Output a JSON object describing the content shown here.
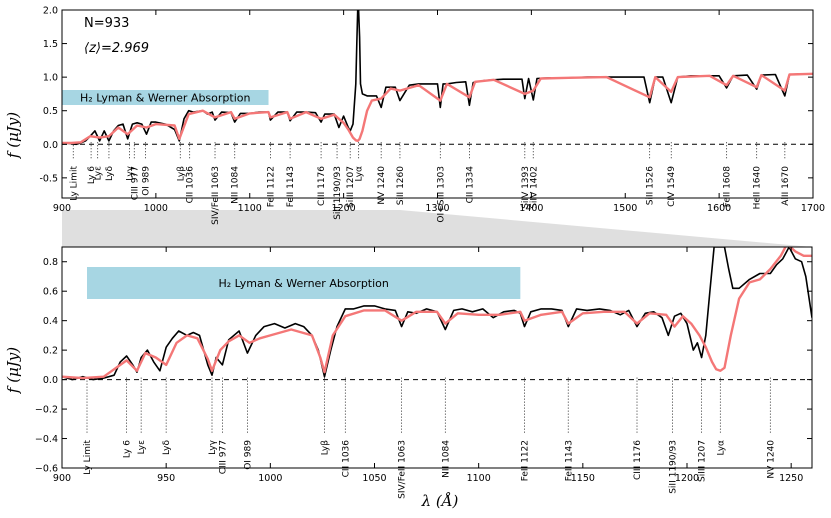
{
  "colors": {
    "observed": "#000000",
    "model": "#f47777",
    "h2_band": "#a7d6e3",
    "zoom_shade": "#d9d9d9"
  },
  "annotations": {
    "n_label": "N=933",
    "z_label": "⟨z⟩=2.969",
    "h2_label_top": "H₂ Lyman & Werner Absorption",
    "h2_label_bottom": "H₂ Lyman & Werner Absorption"
  },
  "chart_data": [
    {
      "type": "line",
      "title": "",
      "xlabel": "λ (Å)",
      "ylabel": "f (μJy)",
      "xlim": [
        900,
        1700
      ],
      "ylim": [
        -0.8,
        2.0
      ],
      "xticks": [
        900,
        1000,
        1100,
        1200,
        1300,
        1400,
        1500,
        1600,
        1700
      ],
      "yticks": [
        "-0.5",
        "0.0",
        "0.5",
        "1.0",
        "1.5",
        "2.0"
      ],
      "h2_band": [
        900,
        1120
      ],
      "series": [
        {
          "key": "observed",
          "x": [
            900,
            910,
            915,
            920,
            925,
            930,
            935,
            940,
            945,
            950,
            955,
            960,
            965,
            970,
            975,
            980,
            985,
            990,
            995,
            1000,
            1010,
            1020,
            1025,
            1030,
            1035,
            1040,
            1050,
            1055,
            1060,
            1063,
            1070,
            1080,
            1084,
            1090,
            1100,
            1110,
            1120,
            1122,
            1130,
            1140,
            1143,
            1150,
            1160,
            1170,
            1176,
            1180,
            1190,
            1195,
            1200,
            1205,
            1207,
            1210,
            1213,
            1214,
            1215,
            1216,
            1217,
            1218,
            1220,
            1225,
            1230,
            1235,
            1240,
            1245,
            1250,
            1255,
            1260,
            1270,
            1280,
            1290,
            1300,
            1303,
            1306,
            1310,
            1320,
            1330,
            1334,
            1338,
            1350,
            1360,
            1370,
            1380,
            1390,
            1393,
            1397,
            1402,
            1406,
            1420,
            1440,
            1460,
            1480,
            1500,
            1520,
            1526,
            1532,
            1540,
            1549,
            1556,
            1570,
            1590,
            1600,
            1608,
            1615,
            1630,
            1640,
            1645,
            1660,
            1670,
            1675,
            1690,
            1700
          ],
          "y": [
            0.02,
            0.01,
            0.0,
            0.02,
            0.05,
            0.12,
            0.2,
            0.05,
            0.2,
            0.05,
            0.2,
            0.28,
            0.3,
            0.08,
            0.3,
            0.32,
            0.3,
            0.15,
            0.33,
            0.33,
            0.3,
            0.22,
            0.05,
            0.38,
            0.5,
            0.48,
            0.5,
            0.45,
            0.48,
            0.36,
            0.48,
            0.47,
            0.33,
            0.46,
            0.46,
            0.48,
            0.48,
            0.36,
            0.48,
            0.48,
            0.35,
            0.48,
            0.48,
            0.47,
            0.33,
            0.45,
            0.45,
            0.25,
            0.42,
            0.25,
            0.2,
            0.3,
            0.9,
            1.5,
            2.0,
            2.0,
            1.6,
            0.9,
            0.75,
            0.72,
            0.72,
            0.72,
            0.55,
            0.85,
            0.85,
            0.85,
            0.65,
            0.88,
            0.9,
            0.9,
            0.9,
            0.55,
            0.9,
            0.9,
            0.92,
            0.93,
            0.58,
            0.92,
            0.95,
            0.96,
            0.97,
            0.97,
            0.97,
            0.68,
            0.98,
            0.66,
            0.98,
            0.99,
            0.99,
            1.0,
            1.0,
            1.0,
            1.0,
            0.62,
            1.0,
            1.0,
            0.62,
            1.0,
            1.02,
            1.02,
            1.02,
            0.84,
            1.02,
            1.03,
            0.82,
            1.03,
            1.04,
            0.72,
            1.04,
            1.05,
            1.05
          ],
          "label": ""
        },
        {
          "key": "model",
          "x": [
            900,
            910,
            920,
            930,
            940,
            950,
            960,
            970,
            980,
            990,
            1000,
            1020,
            1025,
            1035,
            1050,
            1063,
            1080,
            1084,
            1100,
            1120,
            1122,
            1140,
            1143,
            1160,
            1176,
            1190,
            1195,
            1200,
            1205,
            1210,
            1213,
            1215,
            1217,
            1220,
            1225,
            1230,
            1240,
            1250,
            1260,
            1280,
            1303,
            1310,
            1334,
            1340,
            1360,
            1393,
            1402,
            1410,
            1440,
            1480,
            1526,
            1532,
            1549,
            1556,
            1590,
            1608,
            1615,
            1640,
            1645,
            1670,
            1675,
            1700
          ],
          "y": [
            0.02,
            0.02,
            0.03,
            0.12,
            0.1,
            0.12,
            0.25,
            0.15,
            0.28,
            0.25,
            0.3,
            0.28,
            0.08,
            0.45,
            0.5,
            0.4,
            0.48,
            0.38,
            0.46,
            0.48,
            0.4,
            0.48,
            0.38,
            0.48,
            0.38,
            0.44,
            0.38,
            0.32,
            0.22,
            0.1,
            0.06,
            0.05,
            0.08,
            0.2,
            0.5,
            0.65,
            0.68,
            0.83,
            0.8,
            0.88,
            0.65,
            0.9,
            0.7,
            0.93,
            0.96,
            0.75,
            0.8,
            0.98,
            0.99,
            1.0,
            0.7,
            1.0,
            0.78,
            1.0,
            1.02,
            0.88,
            1.02,
            0.85,
            1.03,
            0.8,
            1.04,
            1.05
          ],
          "label": ""
        }
      ],
      "spectral_lines": [
        {
          "x": 912,
          "label": "Ly Limit"
        },
        {
          "x": 931,
          "label": "Ly 6"
        },
        {
          "x": 938,
          "label": "Lyε"
        },
        {
          "x": 950,
          "label": "Lyδ"
        },
        {
          "x": 972,
          "label": "Lyγ"
        },
        {
          "x": 977,
          "label": "CIII 977"
        },
        {
          "x": 989,
          "label": "OI 989"
        },
        {
          "x": 1026,
          "label": "Lyβ"
        },
        {
          "x": 1036,
          "label": "CII 1036"
        },
        {
          "x": 1063,
          "label": "SIV/FeII 1063"
        },
        {
          "x": 1084,
          "label": "NII 1084"
        },
        {
          "x": 1122,
          "label": "FeII 1122"
        },
        {
          "x": 1143,
          "label": "FeII 1143"
        },
        {
          "x": 1176,
          "label": "CIII 1176"
        },
        {
          "x": 1193,
          "label": "SiII 1190/93"
        },
        {
          "x": 1207,
          "label": "SiIII 1207"
        },
        {
          "x": 1216,
          "label": "Lyα"
        },
        {
          "x": 1240,
          "label": "NV 1240"
        },
        {
          "x": 1260,
          "label": "SiII 1260"
        },
        {
          "x": 1303,
          "label": "OI+SiII 1303"
        },
        {
          "x": 1334,
          "label": "CII 1334"
        },
        {
          "x": 1393,
          "label": "SiIV 1393"
        },
        {
          "x": 1402,
          "label": "SiIV 1402"
        },
        {
          "x": 1526,
          "label": "SiII 1526"
        },
        {
          "x": 1549,
          "label": "CIV 1549"
        },
        {
          "x": 1608,
          "label": "FeII 1608"
        },
        {
          "x": 1640,
          "label": "HeII 1640"
        },
        {
          "x": 1670,
          "label": "AlII 1670"
        }
      ]
    },
    {
      "type": "line",
      "title": "",
      "xlabel": "λ (Å)",
      "ylabel": "f (μJy)",
      "xlim": [
        900,
        1260
      ],
      "ylim": [
        -0.6,
        0.9
      ],
      "xticks": [
        900,
        950,
        1000,
        1050,
        1100,
        1150,
        1200,
        1250
      ],
      "yticks": [
        "−0.6",
        "−0.4",
        "−0.2",
        "0.0",
        "0.2",
        "0.4",
        "0.6",
        "0.8"
      ],
      "h2_band": [
        912,
        1120
      ],
      "series": [
        {
          "key": "observed",
          "x": [
            900,
            905,
            910,
            915,
            920,
            925,
            928,
            931,
            934,
            936,
            938,
            941,
            944,
            947,
            950,
            953,
            956,
            960,
            963,
            966,
            970,
            972,
            974,
            977,
            980,
            985,
            989,
            993,
            997,
            1002,
            1007,
            1012,
            1016,
            1020,
            1023,
            1026,
            1029,
            1032,
            1036,
            1040,
            1045,
            1050,
            1055,
            1060,
            1063,
            1066,
            1070,
            1075,
            1080,
            1084,
            1088,
            1092,
            1097,
            1102,
            1107,
            1112,
            1117,
            1120,
            1122,
            1125,
            1130,
            1135,
            1140,
            1143,
            1147,
            1152,
            1158,
            1163,
            1168,
            1172,
            1176,
            1180,
            1184,
            1188,
            1191,
            1194,
            1197,
            1200,
            1203,
            1205,
            1207,
            1209,
            1211,
            1213,
            1214,
            1215,
            1216,
            1217,
            1218,
            1220,
            1222,
            1225,
            1230,
            1235,
            1240,
            1243,
            1246,
            1249,
            1252,
            1255,
            1257,
            1260
          ],
          "y": [
            0.02,
            0.0,
            0.02,
            0.0,
            0.01,
            0.03,
            0.12,
            0.16,
            0.1,
            0.05,
            0.15,
            0.2,
            0.12,
            0.06,
            0.22,
            0.28,
            0.33,
            0.3,
            0.32,
            0.3,
            0.1,
            0.03,
            0.15,
            0.1,
            0.27,
            0.33,
            0.18,
            0.3,
            0.36,
            0.38,
            0.35,
            0.38,
            0.36,
            0.3,
            0.2,
            0.02,
            0.2,
            0.36,
            0.48,
            0.48,
            0.5,
            0.5,
            0.48,
            0.47,
            0.36,
            0.46,
            0.45,
            0.48,
            0.46,
            0.34,
            0.47,
            0.48,
            0.46,
            0.48,
            0.42,
            0.46,
            0.47,
            0.45,
            0.36,
            0.46,
            0.48,
            0.48,
            0.47,
            0.36,
            0.48,
            0.47,
            0.48,
            0.47,
            0.44,
            0.47,
            0.36,
            0.45,
            0.46,
            0.42,
            0.3,
            0.43,
            0.45,
            0.38,
            0.2,
            0.25,
            0.15,
            0.3,
            0.6,
            0.9,
            0.9,
            0.9,
            0.9,
            0.9,
            0.9,
            0.75,
            0.62,
            0.62,
            0.68,
            0.72,
            0.72,
            0.78,
            0.82,
            0.9,
            0.82,
            0.8,
            0.7,
            0.42
          ],
          "label": ""
        },
        {
          "key": "model",
          "x": [
            900,
            910,
            920,
            928,
            931,
            936,
            940,
            945,
            950,
            955,
            960,
            965,
            970,
            972,
            976,
            980,
            985,
            990,
            995,
            1000,
            1010,
            1020,
            1024,
            1026,
            1030,
            1036,
            1045,
            1055,
            1063,
            1070,
            1080,
            1084,
            1090,
            1100,
            1110,
            1120,
            1122,
            1130,
            1140,
            1143,
            1150,
            1160,
            1170,
            1176,
            1182,
            1190,
            1194,
            1198,
            1202,
            1206,
            1209,
            1212,
            1214,
            1216,
            1218,
            1221,
            1225,
            1230,
            1235,
            1240,
            1245,
            1248,
            1252,
            1256,
            1260
          ],
          "y": [
            0.02,
            0.01,
            0.02,
            0.1,
            0.13,
            0.06,
            0.18,
            0.15,
            0.1,
            0.25,
            0.3,
            0.28,
            0.14,
            0.06,
            0.2,
            0.26,
            0.3,
            0.25,
            0.28,
            0.3,
            0.34,
            0.3,
            0.15,
            0.05,
            0.3,
            0.43,
            0.47,
            0.47,
            0.4,
            0.46,
            0.46,
            0.38,
            0.45,
            0.44,
            0.44,
            0.46,
            0.4,
            0.44,
            0.46,
            0.38,
            0.45,
            0.46,
            0.46,
            0.38,
            0.45,
            0.44,
            0.36,
            0.43,
            0.38,
            0.3,
            0.22,
            0.12,
            0.07,
            0.06,
            0.08,
            0.3,
            0.55,
            0.66,
            0.68,
            0.75,
            0.84,
            0.92,
            0.87,
            0.84,
            0.84
          ],
          "label": ""
        }
      ],
      "spectral_lines": [
        {
          "x": 912,
          "label": "Ly Limit"
        },
        {
          "x": 931,
          "label": "Ly 6"
        },
        {
          "x": 938,
          "label": "Lyε"
        },
        {
          "x": 950,
          "label": "Lyδ"
        },
        {
          "x": 972,
          "label": "Lyγ"
        },
        {
          "x": 977,
          "label": "CIII 977"
        },
        {
          "x": 989,
          "label": "OI 989"
        },
        {
          "x": 1026,
          "label": "Lyβ"
        },
        {
          "x": 1036,
          "label": "CII 1036"
        },
        {
          "x": 1063,
          "label": "SIV/FeII 1063"
        },
        {
          "x": 1084,
          "label": "NII 1084"
        },
        {
          "x": 1122,
          "label": "FeII 1122"
        },
        {
          "x": 1143,
          "label": "FeII 1143"
        },
        {
          "x": 1176,
          "label": "CIII 1176"
        },
        {
          "x": 1193,
          "label": "SiII 1190/93"
        },
        {
          "x": 1207,
          "label": "SiIII 1207"
        },
        {
          "x": 1216,
          "label": "Lyα"
        },
        {
          "x": 1240,
          "label": "NV 1240"
        }
      ]
    }
  ]
}
